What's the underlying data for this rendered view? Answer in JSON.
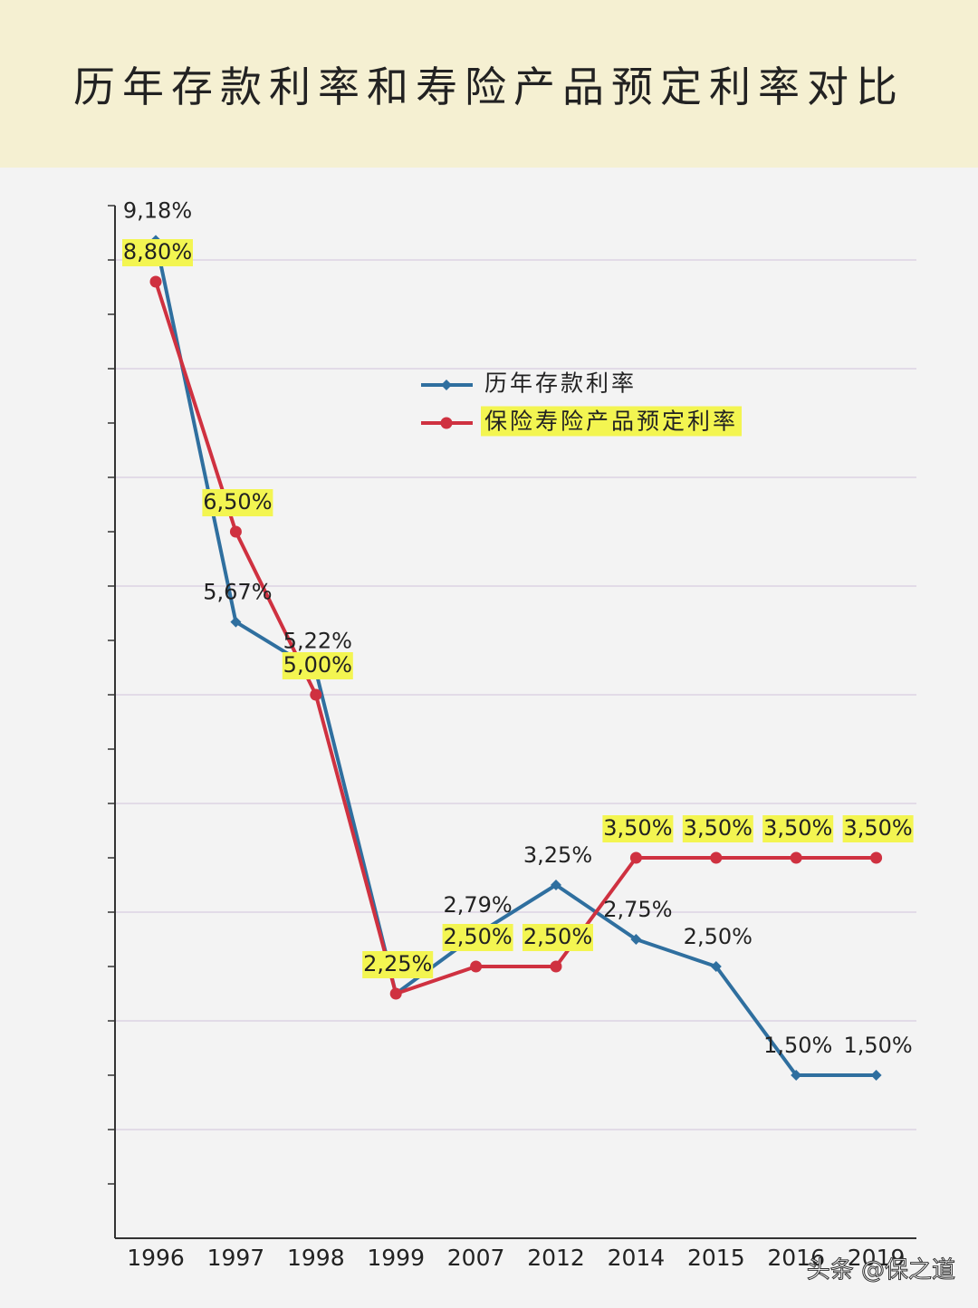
{
  "chart_data": {
    "type": "line",
    "title": "历年存款利率和寿险产品预定利率对比",
    "categories": [
      "1996",
      "1997",
      "1998",
      "1999",
      "2007",
      "2012",
      "2014",
      "2015",
      "2016",
      "2019"
    ],
    "series": [
      {
        "name": "历年存款利率",
        "color": "#2f6f9f",
        "marker": "diamond",
        "values": [
          9.18,
          5.67,
          5.22,
          2.25,
          2.79,
          3.25,
          2.75,
          2.5,
          1.5,
          1.5
        ],
        "value_labels": [
          "9,18%",
          "5,67%",
          "5,22%",
          null,
          "2,79%",
          "3,25%",
          "2,75%",
          "2,50%",
          "1,50%",
          "1,50%"
        ]
      },
      {
        "name": "保险寿险产品预定利率",
        "color": "#cf3140",
        "marker": "circle",
        "highlight": "#f3f551",
        "values": [
          8.8,
          6.5,
          5.0,
          2.25,
          2.5,
          2.5,
          3.5,
          3.5,
          3.5,
          3.5
        ],
        "value_labels": [
          "8,80%",
          "6,50%",
          "5,00%",
          "2,25%",
          "2,50%",
          "2,50%",
          "3,50%",
          "3,50%",
          "3,50%",
          "3,50%"
        ]
      }
    ],
    "ylim": [
      0,
      9.5
    ],
    "yticks": [
      0.5,
      1,
      1.5,
      2,
      2.5,
      3,
      3.5,
      4,
      4.5,
      5,
      5.5,
      6,
      6.5,
      7,
      7.5,
      8,
      8.5,
      9,
      9.5
    ],
    "ygrid": [
      1,
      2,
      3,
      4,
      5,
      6,
      7,
      8,
      9
    ],
    "watermark": "头条 @保之道"
  }
}
